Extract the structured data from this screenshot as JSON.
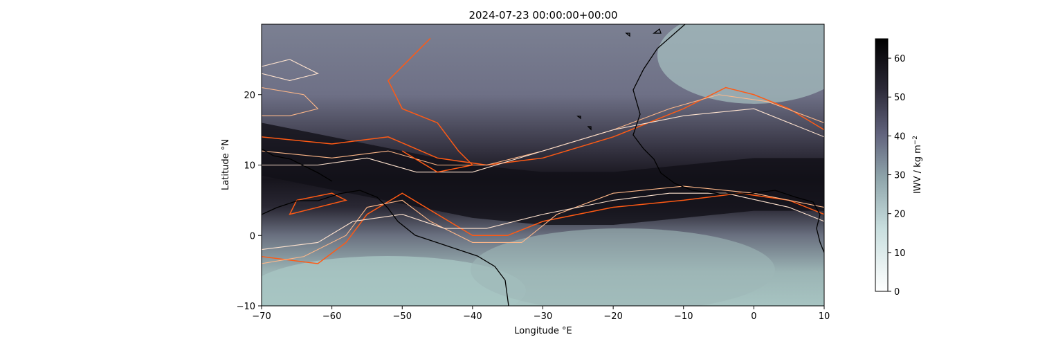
{
  "chart_data": {
    "type": "heatmap",
    "title": "2024-07-23 00:00:00+00:00",
    "xlabel": "Longitude °E",
    "ylabel": "Latitude °N",
    "xlim": [
      -70,
      10
    ],
    "ylim": [
      -10,
      30
    ],
    "xticks": [
      -70,
      -60,
      -50,
      -40,
      -30,
      -20,
      -10,
      0,
      10
    ],
    "yticks": [
      -10,
      0,
      10,
      20
    ],
    "colorbar": {
      "label": "IWV / kg m",
      "label_sup": "−2",
      "range": [
        0,
        65
      ],
      "ticks": [
        0,
        10,
        20,
        30,
        40,
        50,
        60
      ],
      "colormap": "bone_r"
    },
    "field": {
      "name": "IWV",
      "description_values": {
        "moist_band_core_lat": [
          12,
          10,
          8,
          6,
          5,
          5,
          6,
          7,
          7
        ],
        "moist_band_core_lon": [
          -70,
          -60,
          -50,
          -40,
          -30,
          -20,
          -10,
          0,
          10
        ],
        "max_value": 62,
        "min_value": 15
      }
    },
    "contour_colors": [
      "#ff5a14",
      "#ffb889",
      "#ffe3cf"
    ],
    "coastline_color": "#000000"
  }
}
